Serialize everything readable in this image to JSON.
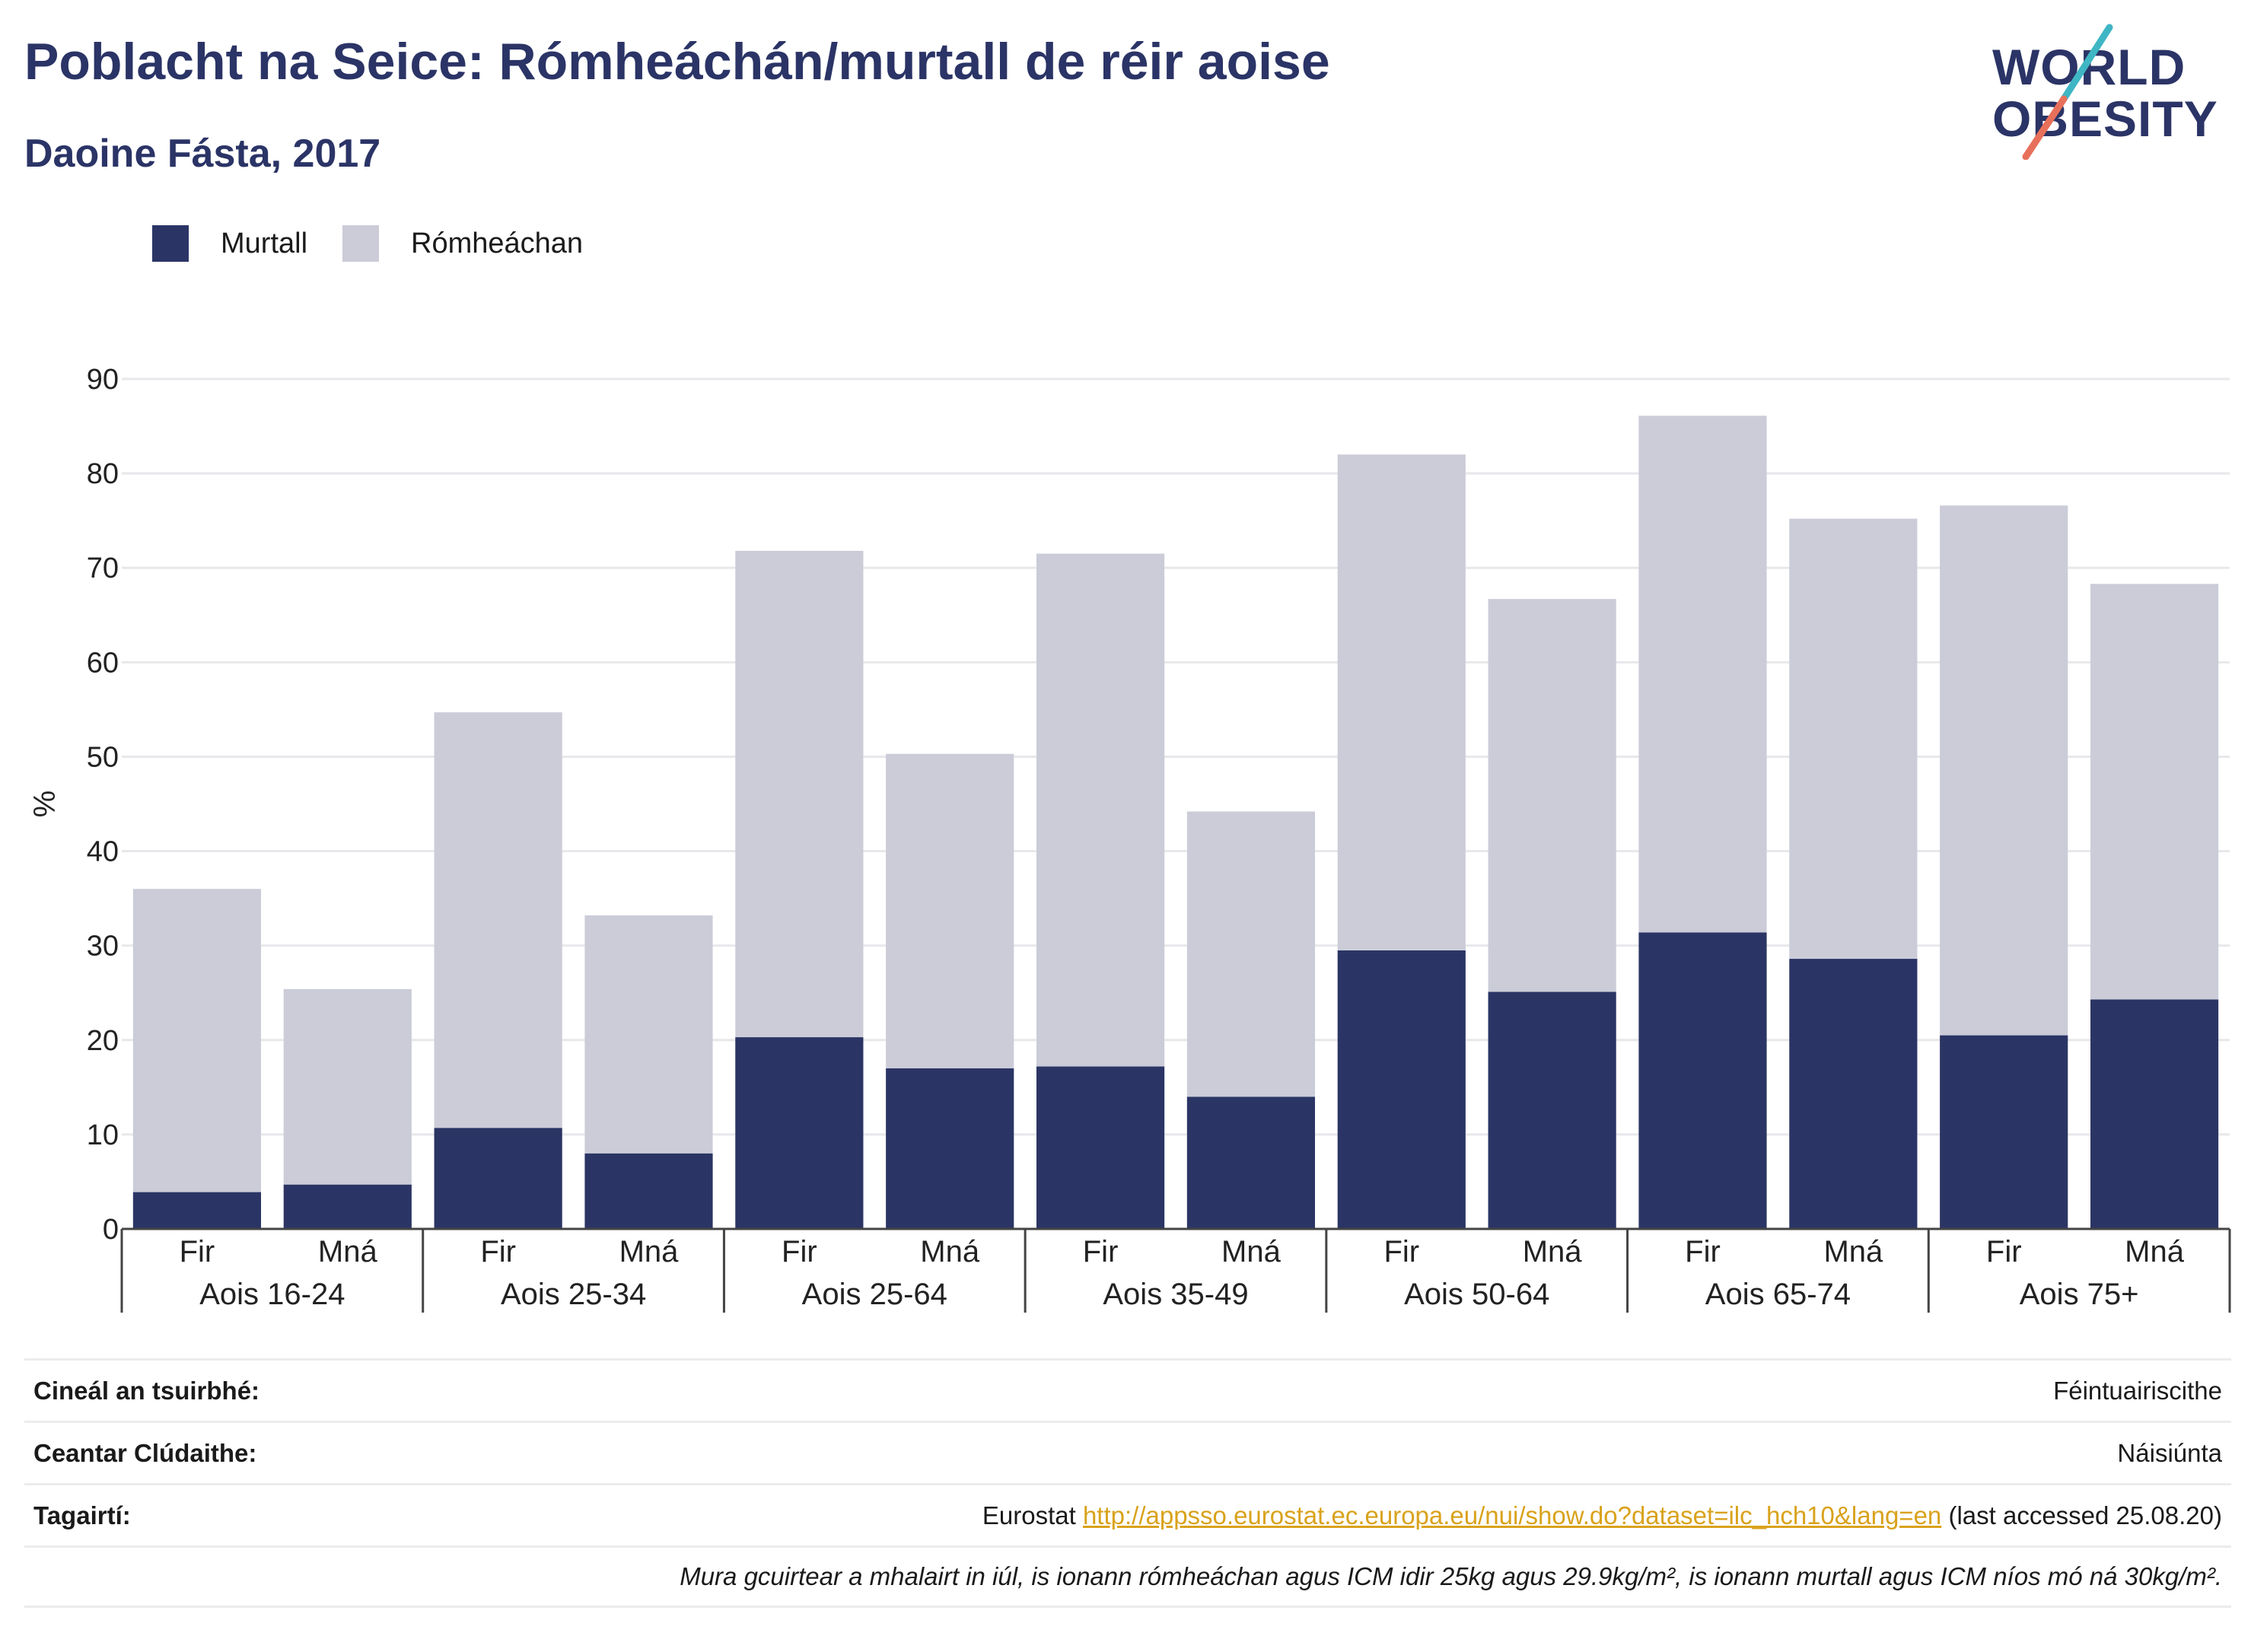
{
  "title": "Poblacht na Seice: Rómheáchán/murtall de réir aoise",
  "subtitle": "Daoine Fásta, 2017",
  "logo": {
    "line1": "WORLD",
    "line2": "OBESITY"
  },
  "colors": {
    "murtall": "#2b3565",
    "romheachan": "#cbccd8",
    "title": "#2b3466",
    "link": "#d9a21b",
    "logo_teal": "#3fb6c4",
    "logo_coral": "#e8705b"
  },
  "legend": {
    "murtall": "Murtall",
    "romheachan": "Rómheáchan"
  },
  "chart_data": {
    "type": "bar",
    "stacked": true,
    "ylabel": "%",
    "ylim": [
      0,
      90
    ],
    "yticks": [
      0,
      10,
      20,
      30,
      40,
      50,
      60,
      70,
      80,
      90
    ],
    "grid": true,
    "legend_position": "top-left",
    "categories": [
      "Fir",
      "Mná",
      "Fir",
      "Mná",
      "Fir",
      "Mná",
      "Fir",
      "Mná",
      "Fir",
      "Mná",
      "Fir",
      "Mná",
      "Fir",
      "Mná"
    ],
    "groups": [
      "Aois 16-24",
      "Aois 25-34",
      "Aois 25-64",
      "Aois 35-49",
      "Aois 50-64",
      "Aois 65-74",
      "Aois 75+"
    ],
    "series": [
      {
        "name": "Murtall",
        "values": [
          3.9,
          4.7,
          10.7,
          8.0,
          20.3,
          17.0,
          17.2,
          14.0,
          29.5,
          25.1,
          31.4,
          28.6,
          20.5,
          24.3
        ]
      },
      {
        "name": "Rómheáchan",
        "values": [
          32.1,
          20.7,
          44.0,
          25.2,
          51.5,
          33.3,
          54.3,
          30.2,
          52.5,
          41.6,
          54.7,
          46.6,
          56.1,
          44.0
        ]
      }
    ]
  },
  "info": {
    "survey_label": "Cineál an tsuirbhé:",
    "survey_value": "Féintuairiscithe",
    "area_label": "Ceantar Clúdaithe:",
    "area_value": "Náisiúnta",
    "ref_label": "Tagairtí:",
    "ref_prefix": "Eurostat ",
    "ref_link": "http://appsso.eurostat.ec.europa.eu/nui/show.do?dataset=ilc_hch10&lang=en",
    "ref_suffix": " (last accessed 25.08.20)",
    "note": "Mura gcuirtear a mhalairt in iúl, is ionann rómheáchan agus ICM idir 25kg agus 29.9kg/m², is ionann murtall agus ICM níos mó ná 30kg/m²."
  }
}
